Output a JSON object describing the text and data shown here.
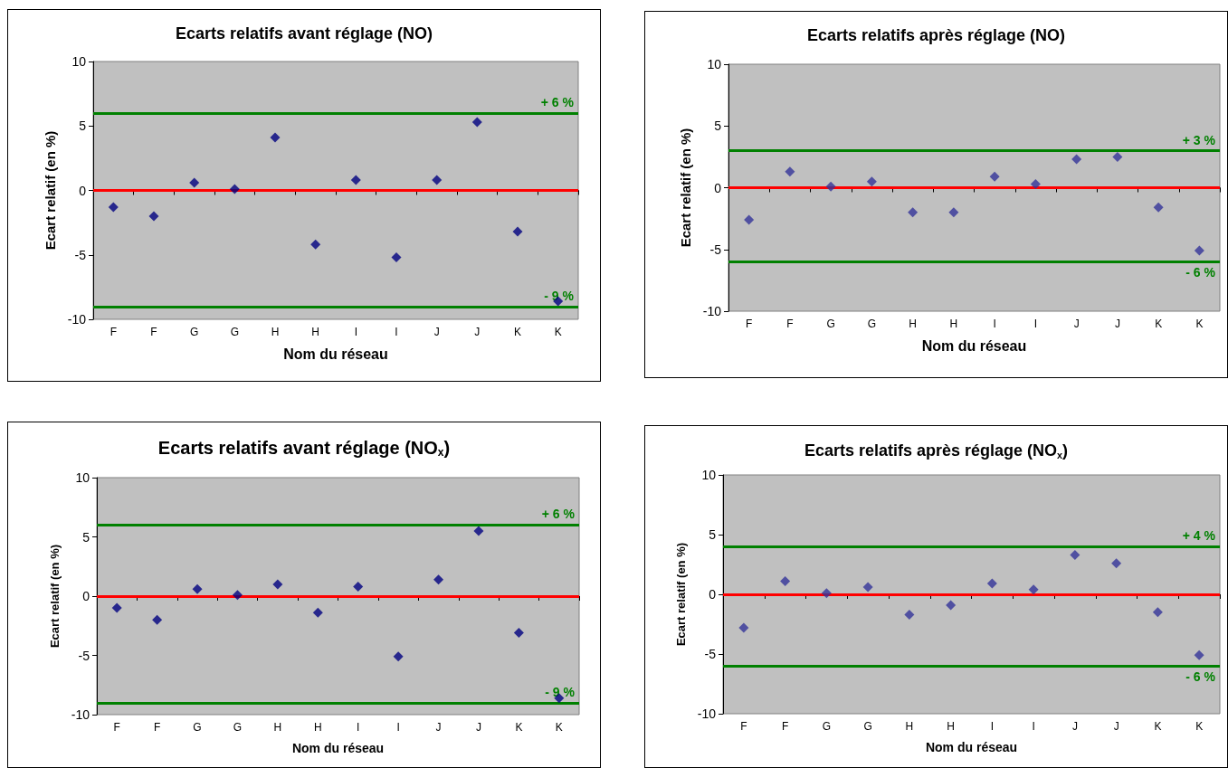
{
  "chart_data": [
    {
      "type": "scatter",
      "title": "Ecarts relatifs avant réglage (NO)",
      "xlabel": "Nom du réseau",
      "ylabel": "Ecart relatif (en %)",
      "categories": [
        "F",
        "F",
        "G",
        "G",
        "H",
        "H",
        "I",
        "I",
        "J",
        "J",
        "K",
        "K"
      ],
      "series": [
        {
          "color": "#000080",
          "values": [
            -1.3,
            -2.0,
            0.6,
            0.1,
            4.1,
            -4.2,
            0.8,
            -5.2,
            0.8,
            5.3,
            -3.2,
            -8.6
          ]
        }
      ],
      "ylim": [
        -10,
        10
      ],
      "yticks": [
        -10,
        -5,
        0,
        5,
        10
      ],
      "grid": false,
      "marker": "diamond",
      "ref_lines": [
        {
          "axis": "y",
          "value": 6,
          "label": "+ 6 %",
          "color": "#008000"
        },
        {
          "axis": "y",
          "value": 0,
          "color": "#ff0000"
        },
        {
          "axis": "y",
          "value": -9,
          "label": "- 9 %",
          "color": "#008000"
        }
      ]
    },
    {
      "type": "scatter",
      "title": "Ecarts relatifs après réglage (NO)",
      "xlabel": "Nom du réseau",
      "ylabel": "Ecart relatif (en %)",
      "categories": [
        "F",
        "F",
        "G",
        "G",
        "H",
        "H",
        "I",
        "I",
        "J",
        "J",
        "K",
        "K"
      ],
      "series": [
        {
          "color": "#333399",
          "values": [
            -2.6,
            1.3,
            0.1,
            0.5,
            -2.0,
            -2.0,
            0.9,
            0.3,
            2.3,
            2.5,
            -1.6,
            -5.1
          ]
        }
      ],
      "ylim": [
        -10,
        10
      ],
      "yticks": [
        -10,
        -5,
        0,
        5,
        10
      ],
      "grid": false,
      "marker": "diamond",
      "ref_lines": [
        {
          "axis": "y",
          "value": 3,
          "label": "+ 3 %",
          "color": "#008000"
        },
        {
          "axis": "y",
          "value": 0,
          "color": "#ff0000"
        },
        {
          "axis": "y",
          "value": -6,
          "label": "- 6 %",
          "color": "#008000"
        }
      ]
    },
    {
      "type": "scatter",
      "title": "Ecarts relatifs avant réglage (NO$_{x}$)",
      "xlabel": "Nom du réseau",
      "ylabel": "Ecart relatif (en %)",
      "categories": [
        "F",
        "F",
        "G",
        "G",
        "H",
        "H",
        "I",
        "I",
        "J",
        "J",
        "K",
        "K"
      ],
      "series": [
        {
          "color": "#000080",
          "values": [
            -1.0,
            -2.0,
            0.6,
            0.1,
            1.0,
            -1.4,
            0.8,
            -5.1,
            1.4,
            5.5,
            -3.1,
            -8.6
          ]
        }
      ],
      "ylim": [
        -10,
        10
      ],
      "yticks": [
        -10,
        -5,
        0,
        5,
        10
      ],
      "grid": false,
      "marker": "diamond",
      "ref_lines": [
        {
          "axis": "y",
          "value": 6,
          "label": "+ 6 %",
          "color": "#008000"
        },
        {
          "axis": "y",
          "value": 0,
          "color": "#ff0000"
        },
        {
          "axis": "y",
          "value": -9,
          "label": "- 9 %",
          "color": "#008000"
        }
      ]
    },
    {
      "type": "scatter",
      "title": "Ecarts relatifs après réglage (NO$_{x}$)",
      "xlabel": "Nom du réseau",
      "ylabel": "Ecart relatif (en %)",
      "categories": [
        "F",
        "F",
        "G",
        "G",
        "H",
        "H",
        "I",
        "I",
        "J",
        "J",
        "K",
        "K"
      ],
      "series": [
        {
          "color": "#333399",
          "values": [
            -2.8,
            1.1,
            0.1,
            0.6,
            -1.7,
            -0.9,
            0.9,
            0.4,
            3.3,
            2.6,
            -1.5,
            -5.1
          ]
        }
      ],
      "ylim": [
        -10,
        10
      ],
      "yticks": [
        -10,
        -5,
        0,
        5,
        10
      ],
      "grid": false,
      "marker": "diamond",
      "ref_lines": [
        {
          "axis": "y",
          "value": 4,
          "label": "+ 4 %",
          "color": "#008000"
        },
        {
          "axis": "y",
          "value": 0,
          "color": "#ff0000"
        },
        {
          "axis": "y",
          "value": -6,
          "label": "- 6 %",
          "color": "#008000"
        }
      ]
    }
  ]
}
